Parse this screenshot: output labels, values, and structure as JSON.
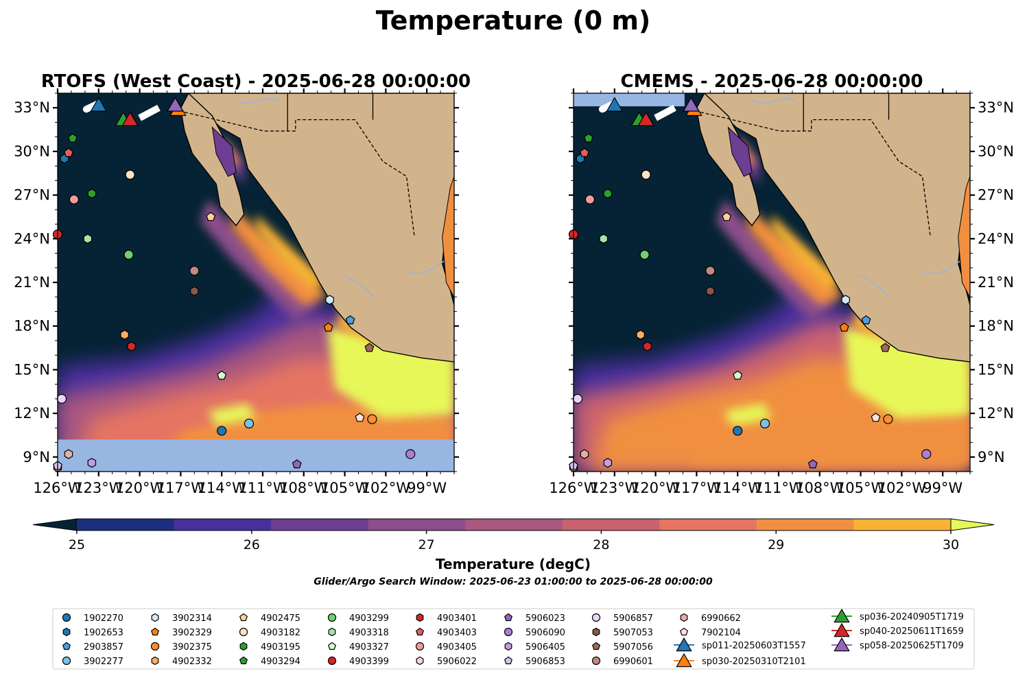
{
  "figure": {
    "title": "Temperature (0 m)",
    "caption": "Glider/Argo Search Window: 2025-06-23 01:00:00 to 2025-06-28 00:00:00"
  },
  "panels": [
    {
      "title": "RTOFS (West Coast) - 2025-06-28 00:00:00",
      "missing_band": "south"
    },
    {
      "title": "CMEMS - 2025-06-28 00:00:00",
      "missing_band": "north"
    }
  ],
  "axes": {
    "lon_ticks": [
      "126°W",
      "123°W",
      "120°W",
      "117°W",
      "114°W",
      "111°W",
      "108°W",
      "105°W",
      "102°W",
      "99°W"
    ],
    "lat_ticks": [
      "33°N",
      "30°N",
      "27°N",
      "24°N",
      "21°N",
      "18°N",
      "15°N",
      "12°N",
      "9°N"
    ],
    "lon_range": [
      -126,
      -97
    ],
    "lat_range": [
      8,
      34
    ]
  },
  "colorbar": {
    "label": "Temperature (degC)",
    "ticks": [
      "25",
      "26",
      "27",
      "28",
      "29",
      "30"
    ],
    "range": [
      25,
      30
    ],
    "colors": [
      "#052334",
      "#1c2f7e",
      "#492f9c",
      "#6d3e92",
      "#8c4d8b",
      "#a9577f",
      "#c9626f",
      "#e57562",
      "#f18f41",
      "#f8b234",
      "#e7f759"
    ],
    "extend": "both"
  },
  "chart_data": {
    "type": "scatter",
    "description_units": "longitude (deg E), latitude (deg N)",
    "series": [
      {
        "name": "1902270",
        "marker": "circle",
        "color": "#1f77b4",
        "lon": -114,
        "lat": 10.8
      },
      {
        "name": "1902653",
        "marker": "hexagon",
        "color": "#1f77b4",
        "lon": -125.5,
        "lat": 29.5
      },
      {
        "name": "2903857",
        "marker": "pentagon",
        "color": "#4f9ed9",
        "lon": -104.6,
        "lat": 18.4
      },
      {
        "name": "3902277",
        "marker": "circle",
        "color": "#7ec0e6",
        "lon": -112,
        "lat": 11.3
      },
      {
        "name": "3902314",
        "marker": "hexagon",
        "color": "#cfe8f7",
        "lon": -106.1,
        "lat": 19.8
      },
      {
        "name": "3902329",
        "marker": "pentagon",
        "color": "#ff7f0e",
        "lon": -106.2,
        "lat": 17.9
      },
      {
        "name": "3902375",
        "marker": "circle",
        "color": "#ff8c32",
        "lon": -103,
        "lat": 11.6
      },
      {
        "name": "4902332",
        "marker": "hexagon",
        "color": "#ffac63",
        "lon": -121.1,
        "lat": 17.4
      },
      {
        "name": "4902475",
        "marker": "pentagon",
        "color": "#ffd097",
        "lon": -114.8,
        "lat": 25.5
      },
      {
        "name": "4903182",
        "marker": "circle",
        "color": "#ffe1c3",
        "lon": -120.7,
        "lat": 28.4
      },
      {
        "name": "4903195",
        "marker": "hexagon",
        "color": "#2ca02c",
        "lon": -123.5,
        "lat": 27.1
      },
      {
        "name": "4903294",
        "marker": "pentagon",
        "color": "#2ca02c",
        "lon": -124.9,
        "lat": 30.9
      },
      {
        "name": "4903299",
        "marker": "circle",
        "color": "#6fd06f",
        "lon": -120.8,
        "lat": 22.9
      },
      {
        "name": "4903318",
        "marker": "hexagon",
        "color": "#a3e6a3",
        "lon": -123.8,
        "lat": 24.0
      },
      {
        "name": "4903327",
        "marker": "pentagon",
        "color": "#d7f7d0",
        "lon": -114,
        "lat": 14.6
      },
      {
        "name": "4903399",
        "marker": "circle",
        "color": "#d62728",
        "lon": -126,
        "lat": 24.3
      },
      {
        "name": "4903401",
        "marker": "hexagon",
        "color": "#d62728",
        "lon": -120.6,
        "lat": 16.6
      },
      {
        "name": "4903403",
        "marker": "pentagon",
        "color": "#e65c5c",
        "lon": -125.2,
        "lat": 29.9
      },
      {
        "name": "4903405",
        "marker": "circle",
        "color": "#f29b9b",
        "lon": -124.8,
        "lat": 26.7
      },
      {
        "name": "5906022",
        "marker": "hexagon",
        "color": "#fbd5d5",
        "lon": -126,
        "lat": 8.3
      },
      {
        "name": "5906023",
        "marker": "pentagon",
        "color": "#9467bd",
        "lon": -108.5,
        "lat": 8.5
      },
      {
        "name": "5906090",
        "marker": "circle",
        "color": "#a881d6",
        "lon": -100.2,
        "lat": 9.2
      },
      {
        "name": "5906405",
        "marker": "hexagon",
        "color": "#bf9fe3",
        "lon": -123.5,
        "lat": 8.6
      },
      {
        "name": "5906853",
        "marker": "pentagon",
        "color": "#d8c2f0",
        "lon": -126,
        "lat": 8.4
      },
      {
        "name": "5906857",
        "marker": "circle",
        "color": "#e8d5f8",
        "lon": -125.7,
        "lat": 13.0
      },
      {
        "name": "5907053",
        "marker": "hexagon",
        "color": "#8c564b",
        "lon": -116,
        "lat": 20.4
      },
      {
        "name": "5907056",
        "marker": "pentagon",
        "color": "#a0685c",
        "lon": -103.2,
        "lat": 16.5
      },
      {
        "name": "6990601",
        "marker": "circle",
        "color": "#c08a7e",
        "lon": -116,
        "lat": 21.8
      },
      {
        "name": "6990662",
        "marker": "hexagon",
        "color": "#e2b0a5",
        "lon": -125.2,
        "lat": 9.2
      },
      {
        "name": "7902104",
        "marker": "pentagon",
        "color": "#fde1d9",
        "lon": -103.9,
        "lat": 11.7
      },
      {
        "name": "sp011-20250603T1557",
        "marker": "triangle",
        "color": "#1f77b4",
        "lon": -123,
        "lat": 33.2
      },
      {
        "name": "sp030-20250310T2101",
        "marker": "triangle",
        "color": "#ff7f0e",
        "lon": -117.2,
        "lat": 32.9
      },
      {
        "name": "sp036-20240905T1719",
        "marker": "triangle",
        "color": "#2ca02c",
        "lon": -121.2,
        "lat": 32.2
      },
      {
        "name": "sp040-20250611T1659",
        "marker": "triangle",
        "color": "#d62728",
        "lon": -120.7,
        "lat": 32.2
      },
      {
        "name": "sp058-20250625T1709",
        "marker": "triangle",
        "color": "#9467bd",
        "lon": -117.4,
        "lat": 33.2
      }
    ]
  },
  "legend": {
    "columns": [
      [
        "1902270",
        "1902653",
        "2903857",
        "3902277"
      ],
      [
        "3902314",
        "3902329",
        "3902375",
        "4902332"
      ],
      [
        "4902475",
        "4903182",
        "4903195",
        "4903294"
      ],
      [
        "4903299",
        "4903318",
        "4903327",
        "4903399"
      ],
      [
        "4903401",
        "4903403",
        "4903405",
        "5906022"
      ],
      [
        "5906023",
        "5906090",
        "5906405",
        "5906853"
      ],
      [
        "5906857",
        "5907053",
        "5907056",
        "6990601"
      ],
      [
        "6990662",
        "7902104",
        "sp011-20250603T1557",
        "sp030-20250310T2101"
      ],
      [
        "sp036-20240905T1719",
        "sp040-20250611T1659",
        "sp058-20250625T1709"
      ]
    ]
  }
}
